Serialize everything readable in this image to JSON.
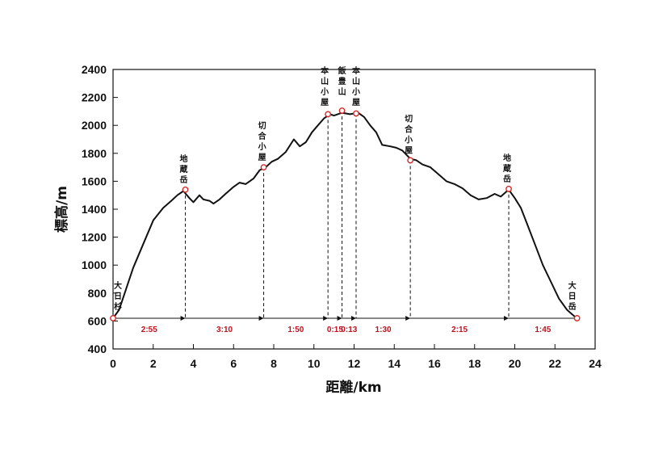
{
  "chart_data": {
    "type": "line",
    "xlabel": "距離/km",
    "ylabel": "標高/m",
    "xlim": [
      0,
      24
    ],
    "ylim": [
      400,
      2400
    ],
    "x_ticks": [
      0,
      2,
      4,
      6,
      8,
      10,
      12,
      14,
      16,
      18,
      20,
      22,
      24
    ],
    "y_ticks": [
      400,
      600,
      800,
      1000,
      1200,
      1400,
      1600,
      1800,
      2000,
      2200,
      2400
    ],
    "grid": false,
    "series": [
      {
        "x": [
          0,
          0.3,
          0.7,
          1.0,
          1.5,
          2.0,
          2.5,
          2.9,
          3.2,
          3.5,
          3.8,
          4.0,
          4.3,
          4.5,
          4.8,
          5.0,
          5.3,
          5.6,
          6.0,
          6.3,
          6.6,
          7.0,
          7.3,
          7.6,
          7.9,
          8.2,
          8.6,
          9.0,
          9.3,
          9.6,
          9.9,
          10.2,
          10.5,
          10.8,
          11.0,
          11.4,
          11.8,
          12.2,
          12.5,
          12.8,
          13.1,
          13.4,
          13.8,
          14.1,
          14.4,
          14.8,
          15.1,
          15.4,
          15.8,
          16.2,
          16.6,
          17.0,
          17.4,
          17.8,
          18.2,
          18.6,
          19.0,
          19.3,
          19.7,
          20.0,
          20.3,
          20.6,
          21.0,
          21.4,
          21.8,
          22.2,
          22.6,
          23.0,
          23.1
        ],
        "y": [
          620,
          680,
          850,
          980,
          1150,
          1320,
          1410,
          1460,
          1500,
          1530,
          1480,
          1450,
          1500,
          1470,
          1460,
          1440,
          1470,
          1510,
          1560,
          1590,
          1580,
          1620,
          1680,
          1700,
          1740,
          1760,
          1810,
          1900,
          1850,
          1880,
          1950,
          2000,
          2050,
          2080,
          2070,
          2090,
          2080,
          2090,
          2060,
          2000,
          1950,
          1860,
          1850,
          1840,
          1820,
          1760,
          1750,
          1720,
          1700,
          1650,
          1600,
          1580,
          1550,
          1500,
          1470,
          1480,
          1510,
          1490,
          1540,
          1480,
          1410,
          1300,
          1150,
          1000,
          880,
          760,
          680,
          630,
          620
        ]
      }
    ],
    "points": [
      {
        "x": 0.0,
        "y": 620,
        "label": "大日杉"
      },
      {
        "x": 3.6,
        "y": 1540,
        "label": "地蔵岳"
      },
      {
        "x": 7.5,
        "y": 1700,
        "label": "切合小屋"
      },
      {
        "x": 10.7,
        "y": 2080,
        "label": "本山小屋"
      },
      {
        "x": 11.4,
        "y": 2105,
        "label": "飯豊山"
      },
      {
        "x": 12.1,
        "y": 2085,
        "label": "本山小屋"
      },
      {
        "x": 14.8,
        "y": 1750,
        "label": "切合小屋"
      },
      {
        "x": 19.7,
        "y": 1545,
        "label": "地蔵岳"
      },
      {
        "x": 23.1,
        "y": 620,
        "label": "大日岳"
      }
    ],
    "segments": [
      {
        "from": 0.0,
        "to": 3.6,
        "time": "2:55"
      },
      {
        "from": 3.6,
        "to": 7.5,
        "time": "3:10"
      },
      {
        "from": 7.5,
        "to": 10.7,
        "time": "1:50"
      },
      {
        "from": 10.7,
        "to": 11.4,
        "time": "0:15"
      },
      {
        "from": 11.4,
        "to": 12.1,
        "time": "0:13"
      },
      {
        "from": 12.1,
        "to": 14.8,
        "time": "1:30"
      },
      {
        "from": 14.8,
        "to": 19.7,
        "time": "2:15"
      },
      {
        "from": 19.7,
        "to": 23.1,
        "time": "1:45"
      }
    ],
    "colors": {
      "line": "#111111",
      "marker": "#d62828",
      "time": "#c1121f"
    }
  }
}
